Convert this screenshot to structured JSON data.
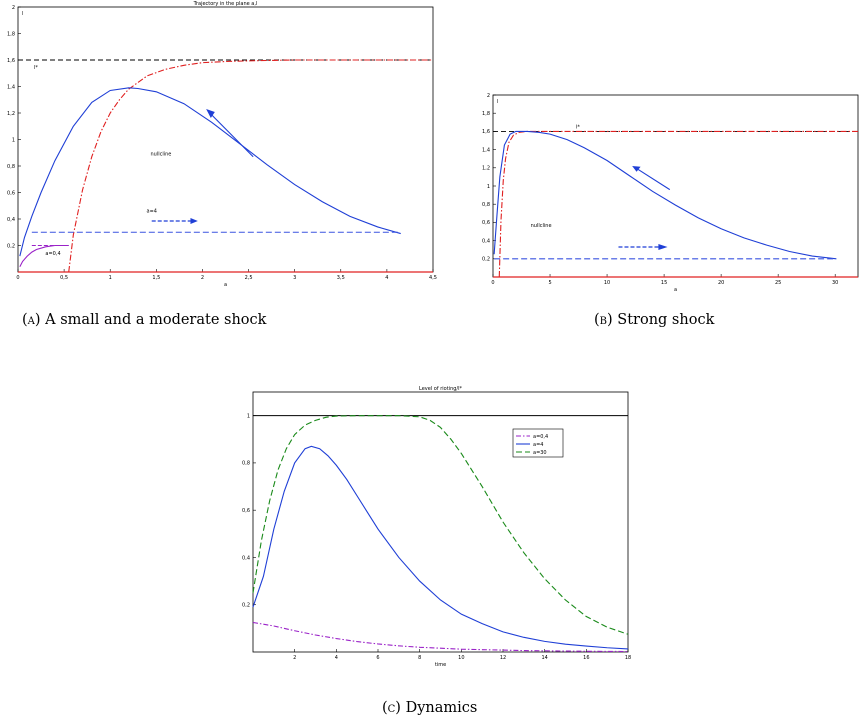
{
  "captions": {
    "a": {
      "tag": "(a)",
      "text": "A small and a moderate shock"
    },
    "b": {
      "tag": "(b)",
      "text": "Strong shock"
    },
    "c": {
      "tag": "(c)",
      "text": "Dynamics"
    }
  },
  "chart_data": [
    {
      "type": "line",
      "title": "Trajectory in the plane a,l",
      "xlabel": "a",
      "ylabel": "l",
      "xlim": [
        0,
        4.5
      ],
      "ylim": [
        0,
        2
      ],
      "xticks": [
        "0",
        "0,5",
        "1",
        "1,5",
        "2",
        "2,5",
        "3",
        "3,5",
        "4",
        "4,5"
      ],
      "yticks": [
        "0,2",
        "0,4",
        "0,6",
        "0,8",
        "1",
        "1,2",
        "1,4",
        "1,6",
        "1,8",
        "2"
      ],
      "reference_lines": [
        {
          "y": 1.6,
          "label": "l*",
          "style": "black-dashed"
        }
      ],
      "annotations": [
        "nullcline",
        "a=4",
        "a=0,4"
      ],
      "colors": {
        "trajectory": "#1f3fd6",
        "nullcline": "#e02020",
        "small_shock": "#9a22c8",
        "ref": "#000000"
      },
      "series": [
        {
          "name": "nullcline",
          "style": "red-dashdot",
          "x": [
            0.55,
            0.6,
            0.7,
            0.8,
            0.9,
            1.0,
            1.1,
            1.2,
            1.4,
            1.6,
            1.8,
            2.0,
            2.3,
            2.6,
            3.0,
            3.5,
            4.0,
            4.5
          ],
          "y": [
            0.0,
            0.28,
            0.62,
            0.87,
            1.06,
            1.2,
            1.3,
            1.38,
            1.48,
            1.53,
            1.56,
            1.58,
            1.59,
            1.595,
            1.6,
            1.6,
            1.6,
            1.6
          ]
        },
        {
          "name": "",
          "style": "blue-solid",
          "x": [
            4.15,
            3.9,
            3.6,
            3.3,
            3.0,
            2.7,
            2.4,
            2.1,
            1.8,
            1.5,
            1.3,
            1.2,
            1.0,
            0.8,
            0.6,
            0.4,
            0.25,
            0.15,
            0.07,
            0.02
          ],
          "y": [
            0.29,
            0.34,
            0.42,
            0.53,
            0.66,
            0.81,
            0.97,
            1.13,
            1.27,
            1.36,
            1.385,
            1.39,
            1.37,
            1.28,
            1.1,
            0.84,
            0.6,
            0.42,
            0.26,
            0.12
          ]
        },
        {
          "name": "",
          "style": "blue-dashed",
          "x": [
            0.15,
            4.15
          ],
          "y": [
            0.3,
            0.3
          ]
        },
        {
          "name": "",
          "style": "purple-solid",
          "x": [
            0.02,
            0.05,
            0.1,
            0.15,
            0.2,
            0.3,
            0.4,
            0.5,
            0.55
          ],
          "y": [
            0.04,
            0.08,
            0.12,
            0.15,
            0.17,
            0.19,
            0.2,
            0.2,
            0.2
          ]
        },
        {
          "name": "",
          "style": "purple-dashed",
          "x": [
            0.15,
            0.55
          ],
          "y": [
            0.2,
            0.2
          ]
        }
      ]
    },
    {
      "type": "line",
      "title": "",
      "xlabel": "a",
      "ylabel": "l",
      "xlim": [
        0,
        32
      ],
      "ylim": [
        0,
        2
      ],
      "xticks": [
        "0",
        "5",
        "10",
        "15",
        "20",
        "25",
        "30"
      ],
      "yticks": [
        "0,2",
        "0,4",
        "0,6",
        "0,8",
        "1",
        "1,2",
        "1,4",
        "1,6",
        "1,8",
        "2"
      ],
      "reference_lines": [
        {
          "y": 1.6,
          "label": "l*",
          "style": "black-dashed"
        }
      ],
      "annotations": [
        "nullcline"
      ],
      "series": [
        {
          "name": "nullcline",
          "style": "red-dashdot",
          "x": [
            0.55,
            0.7,
            0.9,
            1.1,
            1.4,
            1.8,
            2.3,
            3.0,
            4.0,
            6.0,
            10.0,
            20.0,
            32.0
          ],
          "y": [
            0.0,
            0.62,
            1.06,
            1.3,
            1.48,
            1.56,
            1.59,
            1.6,
            1.6,
            1.6,
            1.6,
            1.6,
            1.6
          ]
        },
        {
          "name": "",
          "style": "blue-solid",
          "x": [
            30.1,
            28.0,
            26.0,
            24.0,
            22.0,
            20.0,
            18.0,
            16.0,
            14.0,
            12.0,
            10.0,
            8.0,
            6.5,
            5.0,
            4.0,
            3.0,
            2.0,
            1.5,
            1.0,
            0.6,
            0.3,
            0.1
          ],
          "y": [
            0.2,
            0.23,
            0.28,
            0.35,
            0.43,
            0.53,
            0.65,
            0.79,
            0.94,
            1.11,
            1.28,
            1.42,
            1.51,
            1.57,
            1.59,
            1.6,
            1.6,
            1.57,
            1.45,
            1.1,
            0.6,
            0.25
          ]
        },
        {
          "name": "",
          "style": "blue-dashed",
          "x": [
            0.1,
            30.1
          ],
          "y": [
            0.2,
            0.2
          ]
        }
      ]
    },
    {
      "type": "line",
      "title": "Level of rioting/l*",
      "xlabel": "time",
      "ylabel": "",
      "xlim": [
        0,
        18
      ],
      "ylim": [
        0,
        1.1
      ],
      "xticks": [
        "2",
        "4",
        "6",
        "8",
        "10",
        "12",
        "14",
        "16",
        "18"
      ],
      "yticks": [
        "0,2",
        "0,4",
        "0,6",
        "0,8",
        "1"
      ],
      "reference_lines": [
        {
          "y": 1.0,
          "style": "black-solid"
        }
      ],
      "legend": {
        "position": "top-right",
        "entries": [
          "a=0,4",
          "a=4",
          "a=30"
        ]
      },
      "series": [
        {
          "name": "a=0,4",
          "style": "purple-dashdot",
          "x": [
            0,
            1,
            2,
            3,
            4,
            5,
            6,
            7,
            8,
            9,
            10,
            11,
            12,
            13,
            14,
            15,
            16,
            17,
            18
          ],
          "y": [
            0.125,
            0.11,
            0.09,
            0.072,
            0.057,
            0.044,
            0.034,
            0.026,
            0.02,
            0.016,
            0.012,
            0.01,
            0.008,
            0.006,
            0.005,
            0.004,
            0.003,
            0.0025,
            0.002
          ]
        },
        {
          "name": "a=4",
          "style": "blue-solid",
          "x": [
            0,
            0.5,
            1,
            1.5,
            2,
            2.5,
            2.8,
            3.2,
            3.6,
            4,
            4.5,
            5,
            5.5,
            6,
            7,
            8,
            9,
            10,
            11,
            12,
            13,
            14,
            15,
            16,
            17,
            18
          ],
          "y": [
            0.19,
            0.32,
            0.52,
            0.68,
            0.8,
            0.86,
            0.87,
            0.86,
            0.83,
            0.79,
            0.73,
            0.66,
            0.59,
            0.52,
            0.4,
            0.3,
            0.22,
            0.16,
            0.12,
            0.085,
            0.062,
            0.045,
            0.033,
            0.025,
            0.018,
            0.013
          ]
        },
        {
          "name": "a=30",
          "style": "green-dashed",
          "x": [
            0,
            0.4,
            0.8,
            1.2,
            1.6,
            2,
            2.5,
            3,
            3.5,
            4,
            5,
            6,
            7,
            8,
            8.5,
            9,
            9.5,
            10,
            11,
            12,
            13,
            14,
            15,
            16,
            17,
            18
          ],
          "y": [
            0.25,
            0.47,
            0.64,
            0.77,
            0.86,
            0.92,
            0.96,
            0.98,
            0.993,
            0.998,
            1.0,
            1.0,
            1.0,
            0.995,
            0.98,
            0.95,
            0.9,
            0.84,
            0.7,
            0.55,
            0.42,
            0.31,
            0.22,
            0.15,
            0.105,
            0.075
          ]
        }
      ]
    }
  ]
}
